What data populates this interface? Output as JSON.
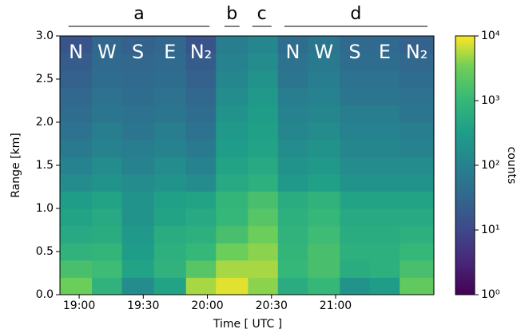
{
  "chart_data": {
    "type": "heatmap",
    "xlabel": "Time [ UTC ]",
    "ylabel": "Range [km]",
    "colorbar_label": "counts",
    "colormap": "viridis",
    "log_color": true,
    "clim": [
      1,
      10000
    ],
    "cticks": [
      {
        "value": 1,
        "label": "10⁰"
      },
      {
        "value": 10,
        "label": "10¹"
      },
      {
        "value": 100,
        "label": "10²"
      },
      {
        "value": 1000,
        "label": "10³"
      },
      {
        "value": 10000,
        "label": "10⁴"
      }
    ],
    "xlim": [
      1131,
      1306
    ],
    "xticks": [
      {
        "value": 1140,
        "label": "19:00"
      },
      {
        "value": 1170,
        "label": "19:30"
      },
      {
        "value": 1200,
        "label": "20:00"
      },
      {
        "value": 1230,
        "label": "20:30"
      },
      {
        "value": 1260,
        "label": "21:00"
      }
    ],
    "ylim": [
      0,
      3
    ],
    "yticks": [
      {
        "value": 0,
        "label": "0.0"
      },
      0.5,
      {
        "value": 1,
        "label": "1.0"
      },
      1.5,
      {
        "value": 2,
        "label": "2.0"
      },
      2.5,
      {
        "value": 3,
        "label": "3.0"
      }
    ],
    "time_bins": [
      1131,
      1146,
      1160,
      1175,
      1190,
      1204,
      1219,
      1233,
      1247,
      1262,
      1276,
      1290,
      1306
    ],
    "range_bins": [
      0,
      0.2,
      0.4,
      0.6,
      0.8,
      1,
      1.2,
      1.4,
      1.6,
      1.8,
      2,
      2.2,
      2.4,
      2.6,
      2.8,
      3
    ],
    "direction_labels": [
      "N",
      "W",
      "S",
      "E",
      "N₂",
      null,
      null,
      "N",
      "W",
      "S",
      "E",
      "N₂"
    ],
    "groups": [
      {
        "label": "a",
        "range": [
          1135,
          1201
        ]
      },
      {
        "label": "b",
        "range": [
          1208,
          1215
        ]
      },
      {
        "label": "c",
        "range": [
          1221,
          1230
        ]
      },
      {
        "label": "d",
        "range": [
          1236,
          1303
        ]
      }
    ],
    "z": [
      [
        3000,
        800,
        150,
        400,
        5000,
        8000,
        4000,
        600,
        1000,
        200,
        300,
        2500
      ],
      [
        1500,
        1200,
        400,
        800,
        2000,
        5000,
        5000,
        1000,
        1500,
        600,
        700,
        1500
      ],
      [
        800,
        900,
        300,
        700,
        1000,
        3000,
        4000,
        900,
        1500,
        700,
        700,
        1000
      ],
      [
        500,
        600,
        250,
        600,
        700,
        1500,
        3000,
        800,
        1200,
        600,
        600,
        700
      ],
      [
        400,
        500,
        200,
        400,
        500,
        1000,
        2000,
        700,
        1000,
        500,
        500,
        500
      ],
      [
        300,
        400,
        200,
        350,
        400,
        900,
        1500,
        600,
        800,
        400,
        400,
        400
      ],
      [
        150,
        200,
        150,
        200,
        150,
        500,
        700,
        250,
        350,
        200,
        200,
        200
      ],
      [
        100,
        150,
        100,
        150,
        100,
        400,
        500,
        200,
        250,
        150,
        150,
        150
      ],
      [
        70,
        100,
        80,
        100,
        70,
        300,
        400,
        150,
        200,
        120,
        120,
        100
      ],
      [
        50,
        80,
        60,
        80,
        50,
        250,
        350,
        120,
        150,
        100,
        100,
        80
      ],
      [
        40,
        60,
        50,
        60,
        40,
        200,
        300,
        100,
        120,
        80,
        80,
        60
      ],
      [
        30,
        50,
        40,
        50,
        30,
        150,
        250,
        80,
        100,
        60,
        60,
        50
      ],
      [
        25,
        40,
        35,
        40,
        25,
        120,
        200,
        60,
        80,
        50,
        50,
        40
      ],
      [
        20,
        35,
        30,
        35,
        20,
        100,
        150,
        50,
        70,
        40,
        40,
        30
      ],
      [
        15,
        30,
        25,
        30,
        15,
        80,
        120,
        40,
        60,
        35,
        35,
        25
      ]
    ]
  }
}
